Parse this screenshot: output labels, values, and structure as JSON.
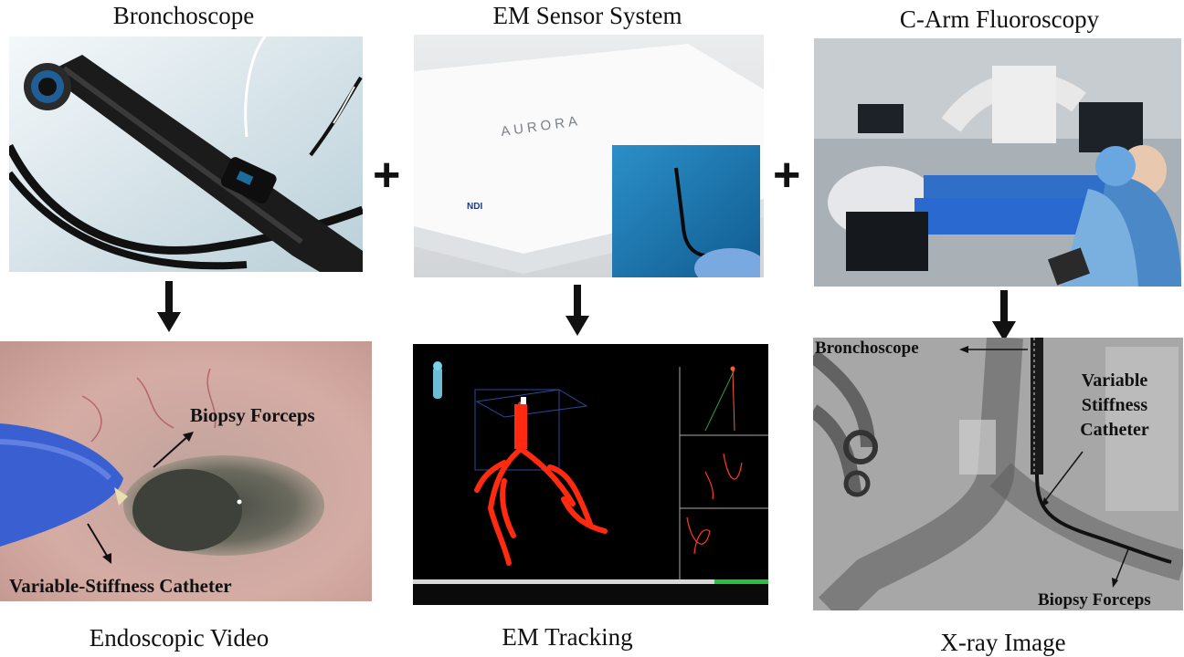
{
  "titles": {
    "bronchoscope": "Bronchoscope",
    "em_sensor": "EM Sensor System",
    "c_arm": "C-Arm Fluoroscopy",
    "endoscopic_video": "Endoscopic Video",
    "em_tracking": "EM Tracking",
    "xray_image": "X-ray Image"
  },
  "operators": {
    "plus": "+"
  },
  "endoscopic_labels": {
    "biopsy_forceps": "Biopsy Forceps",
    "catheter": "Variable-Stiffness Catheter"
  },
  "xray_labels": {
    "bronchoscope": "Bronchoscope",
    "catheter_line1": "Variable",
    "catheter_line2": "Stiffness",
    "catheter_line3": "Catheter",
    "biopsy_forceps": "Biopsy Forceps"
  },
  "device_marks": {
    "aurora_logo": "AURORA",
    "ndi_logo": "NDI"
  },
  "colors": {
    "airway_red": "#ff2a10",
    "tracking_bg": "#000000",
    "xray_gray": "#9a9a9a",
    "mucosa_pink": "#d8a8a0",
    "catheter_blue": "#3a6ad8",
    "drape_blue": "#2a6ad0"
  }
}
